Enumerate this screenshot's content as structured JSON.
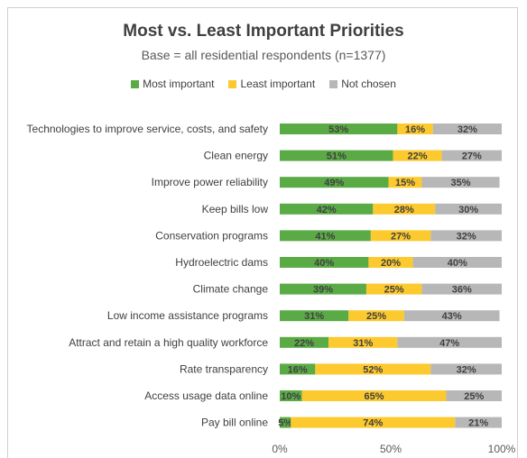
{
  "chart_data": {
    "type": "bar",
    "orientation": "horizontal",
    "stacked": true,
    "title": "Most vs. Least Important Priorities",
    "subtitle": "Base = all residential respondents (n=1377)",
    "categories": [
      "Technologies to improve service, costs, and safety",
      "Clean energy",
      "Improve power reliability",
      "Keep bills low",
      "Conservation programs",
      "Hydroelectric dams",
      "Climate change",
      "Low income assistance programs",
      "Attract and retain a high quality workforce",
      "Rate transparency",
      "Access usage data online",
      "Pay bill online"
    ],
    "series": [
      {
        "name": "Most important",
        "color": "#5aab46",
        "values": [
          53,
          51,
          49,
          42,
          41,
          40,
          39,
          31,
          22,
          16,
          10,
          5
        ]
      },
      {
        "name": "Least important",
        "color": "#fcc92e",
        "values": [
          16,
          22,
          15,
          28,
          27,
          20,
          25,
          25,
          31,
          52,
          65,
          74
        ]
      },
      {
        "name": "Not chosen",
        "color": "#b7b7b7",
        "values": [
          32,
          27,
          35,
          30,
          32,
          40,
          36,
          43,
          47,
          32,
          25,
          21
        ]
      }
    ],
    "value_suffix": "%",
    "xlim": [
      0,
      100
    ],
    "x_ticks": [
      "0%",
      "50%",
      "100%"
    ],
    "grid": false,
    "legend_position": "top"
  }
}
